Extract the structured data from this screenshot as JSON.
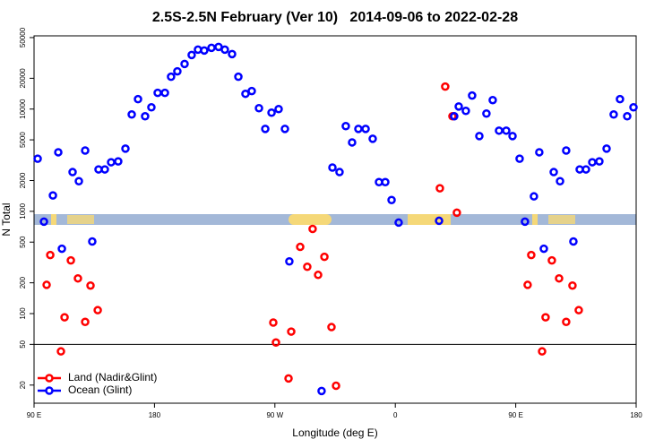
{
  "chart_data": {
    "type": "scatter",
    "title": "2.5S-2.5N February (Ver 10)   2014-09-06 to 2022-02-28",
    "xlabel": "Longitude (deg E)",
    "ylabel": "N Total",
    "log_y": true,
    "legend": "bottom-left",
    "hline": 50,
    "xlim": [
      90,
      540
    ],
    "xticks": [
      {
        "value": 90,
        "label": "90 E"
      },
      180,
      {
        "value": 270,
        "label": "90 W"
      },
      {
        "value": 360,
        "label": "0"
      },
      {
        "value": 450,
        "label": "90 E"
      },
      {
        "value": 540,
        "label": "180"
      }
    ],
    "ylim": [
      13.3,
      52000
    ],
    "yticks": [
      20,
      50,
      100,
      200,
      500,
      1000,
      2000,
      5000,
      10000,
      20000,
      50000
    ],
    "series": [
      {
        "name": "Land (Nadir&Glint)",
        "color": "#ff0000",
        "x": [
          99.4,
          102.1,
          110.1,
          112.8,
          117.5,
          122.8,
          128.2,
          132.2,
          137.6,
          268.8,
          270.8,
          280.2,
          282.2,
          288.9,
          294.2,
          298.2,
          302.3,
          307.0,
          312.3,
          315.7,
          393.3,
          397.3,
          402.7,
          406.0,
          458.9,
          461.6,
          469.7,
          472.3,
          477.0,
          482.4,
          487.7,
          492.4,
          497.1
        ],
        "values": [
          191,
          374,
          42.7,
          92,
          331,
          221,
          83,
          188,
          108,
          81.7,
          52.2,
          23.2,
          66.7,
          449,
          287,
          673,
          239,
          359,
          73.8,
          19.7,
          1680,
          16600,
          8500,
          970,
          191,
          374,
          42.7,
          92,
          331,
          221,
          83,
          188,
          108
        ]
      },
      {
        "name": "Ocean (Glint)",
        "color": "#0000ff",
        "x": [
          92.7,
          97.4,
          104.1,
          108.1,
          110.8,
          118.8,
          123.5,
          128.2,
          133.5,
          138.2,
          142.9,
          147.6,
          152.9,
          158.3,
          163.0,
          167.7,
          173.0,
          177.7,
          182.4,
          187.8,
          192.4,
          197.1,
          202.5,
          207.8,
          212.5,
          217.2,
          222.6,
          227.9,
          232.6,
          238.0,
          242.7,
          248.0,
          252.7,
          258.1,
          262.8,
          267.5,
          272.8,
          277.5,
          280.8,
          304.9,
          313.0,
          318.3,
          323.0,
          327.7,
          332.4,
          337.8,
          343.1,
          347.8,
          352.5,
          357.2,
          362.5,
          392.7,
          404.0,
          407.4,
          412.7,
          417.4,
          422.8,
          428.1,
          432.8,
          437.5,
          442.9,
          447.6,
          452.9,
          456.9,
          463.6,
          467.6,
          471.0,
          478.4,
          483.1,
          487.7,
          493.1,
          497.8,
          502.5,
          507.2,
          512.5,
          517.9,
          523.2,
          527.9,
          533.3,
          538.0
        ],
        "values": [
          3270,
          793,
          1430,
          3780,
          431,
          2420,
          1970,
          3930,
          507,
          2570,
          2570,
          3020,
          3080,
          4100,
          8850,
          12500,
          8500,
          10400,
          14400,
          14400,
          20700,
          23400,
          27600,
          33800,
          38100,
          37400,
          39700,
          40500,
          38100,
          34500,
          20700,
          14100,
          15000,
          10200,
          6400,
          9220,
          10000,
          6400,
          324,
          17.5,
          2680,
          2420,
          6810,
          4720,
          6400,
          6400,
          5120,
          1930,
          1930,
          1290,
          776,
          808,
          8500,
          10600,
          9600,
          13550,
          5440,
          9040,
          12240,
          6150,
          6150,
          5440,
          3270,
          793,
          1400,
          3780,
          431,
          2420,
          1970,
          3930,
          507,
          2570,
          2570,
          3020,
          3080,
          4100,
          8850,
          12500,
          8500,
          10400
        ]
      }
    ]
  }
}
